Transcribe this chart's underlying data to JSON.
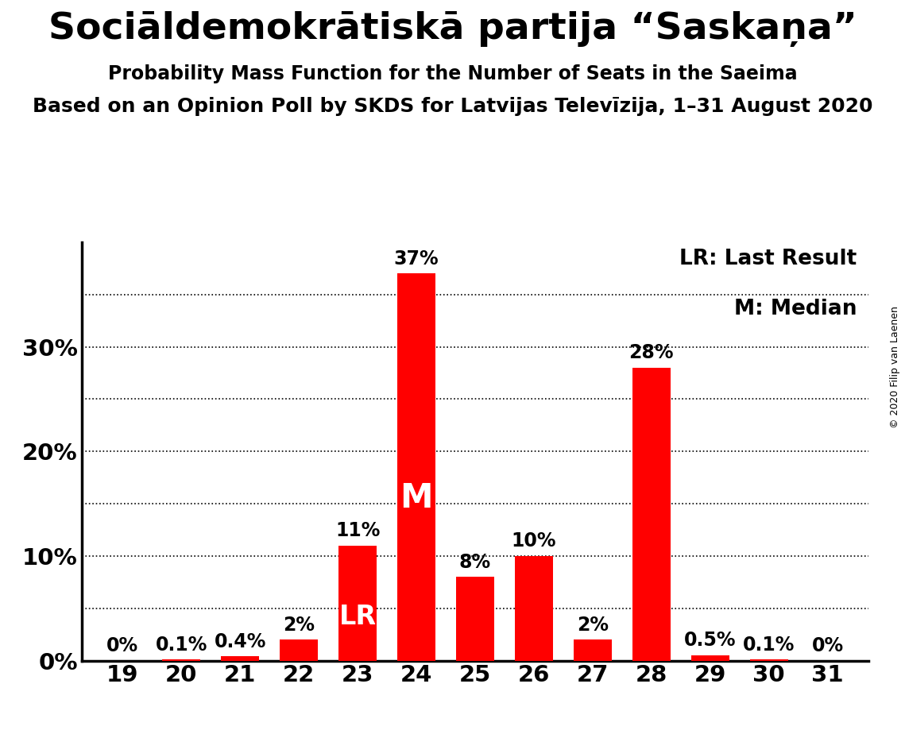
{
  "title": "Sociāldemokrātiskā partija “Saskaņa”",
  "subtitle": "Probability Mass Function for the Number of Seats in the Saeima",
  "subtitle2": "Based on an Opinion Poll by SKDS for Latvijas Televīzija, 1–31 August 2020",
  "copyright": "© 2020 Filip van Laenen",
  "seats": [
    19,
    20,
    21,
    22,
    23,
    24,
    25,
    26,
    27,
    28,
    29,
    30,
    31
  ],
  "probabilities": [
    0.0,
    0.1,
    0.4,
    2.0,
    11.0,
    37.0,
    8.0,
    10.0,
    2.0,
    28.0,
    0.5,
    0.1,
    0.0
  ],
  "labels": [
    "0%",
    "0.1%",
    "0.4%",
    "2%",
    "11%",
    "37%",
    "8%",
    "10%",
    "2%",
    "28%",
    "0.5%",
    "0.1%",
    "0%"
  ],
  "bar_color": "#ff0000",
  "last_result_seat": 23,
  "median_seat": 24,
  "lr_label": "LR",
  "median_label": "M",
  "legend_lr": "LR: Last Result",
  "legend_m": "M: Median",
  "ytick_labels": [
    "0%",
    "10%",
    "20%",
    "30%"
  ],
  "ytick_values": [
    0,
    10,
    20,
    30
  ],
  "ygrid_values": [
    5,
    10,
    15,
    20,
    25,
    30,
    35
  ],
  "ymax": 40,
  "background_color": "#ffffff",
  "title_fontsize": 34,
  "subtitle_fontsize": 17,
  "subtitle2_fontsize": 18,
  "bar_label_fontsize": 17,
  "axis_tick_fontsize": 21,
  "inner_label_lr_fontsize": 24,
  "inner_label_m_fontsize": 30,
  "legend_fontsize": 19,
  "copyright_fontsize": 9,
  "bar_width": 0.65
}
